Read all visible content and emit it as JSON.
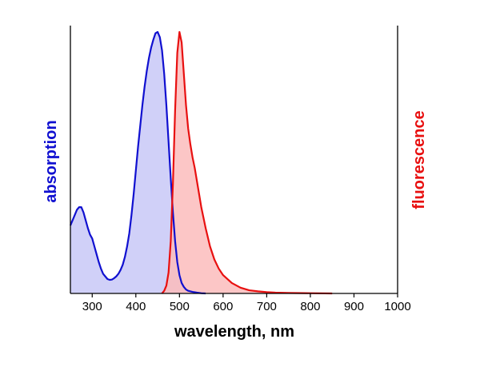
{
  "chart_data": {
    "type": "area",
    "xlabel": "wavelength, nm",
    "ylabel_left": "absorption",
    "ylabel_right": "fluorescence",
    "xlim": [
      250,
      1000
    ],
    "ylim": [
      0,
      1.0
    ],
    "grid": false,
    "x_ticks": [
      300,
      400,
      500,
      600,
      700,
      800,
      900,
      1000
    ],
    "tick_labels": [
      "300",
      "400",
      "500",
      "600",
      "700",
      "800",
      "900",
      "1000"
    ],
    "series": [
      {
        "name": "absorption",
        "color": "#1010d0",
        "fill": "#c8c8f7",
        "points": [
          [
            250,
            0.26
          ],
          [
            255,
            0.28
          ],
          [
            260,
            0.3
          ],
          [
            265,
            0.32
          ],
          [
            270,
            0.33
          ],
          [
            275,
            0.33
          ],
          [
            280,
            0.31
          ],
          [
            285,
            0.28
          ],
          [
            290,
            0.25
          ],
          [
            295,
            0.225
          ],
          [
            300,
            0.21
          ],
          [
            305,
            0.18
          ],
          [
            310,
            0.15
          ],
          [
            315,
            0.12
          ],
          [
            320,
            0.095
          ],
          [
            325,
            0.075
          ],
          [
            330,
            0.065
          ],
          [
            335,
            0.055
          ],
          [
            340,
            0.052
          ],
          [
            345,
            0.053
          ],
          [
            350,
            0.058
          ],
          [
            355,
            0.065
          ],
          [
            360,
            0.075
          ],
          [
            365,
            0.09
          ],
          [
            370,
            0.11
          ],
          [
            375,
            0.14
          ],
          [
            380,
            0.18
          ],
          [
            385,
            0.23
          ],
          [
            390,
            0.3
          ],
          [
            395,
            0.38
          ],
          [
            400,
            0.47
          ],
          [
            405,
            0.56
          ],
          [
            410,
            0.64
          ],
          [
            415,
            0.72
          ],
          [
            420,
            0.79
          ],
          [
            425,
            0.85
          ],
          [
            430,
            0.9
          ],
          [
            435,
            0.94
          ],
          [
            440,
            0.97
          ],
          [
            445,
            0.995
          ],
          [
            450,
            1.0
          ],
          [
            455,
            0.98
          ],
          [
            460,
            0.93
          ],
          [
            465,
            0.84
          ],
          [
            470,
            0.72
          ],
          [
            475,
            0.58
          ],
          [
            480,
            0.44
          ],
          [
            485,
            0.31
          ],
          [
            490,
            0.2
          ],
          [
            495,
            0.12
          ],
          [
            500,
            0.07
          ],
          [
            505,
            0.04
          ],
          [
            510,
            0.025
          ],
          [
            515,
            0.015
          ],
          [
            520,
            0.01
          ],
          [
            530,
            0.006
          ],
          [
            540,
            0.003
          ],
          [
            550,
            0.001
          ],
          [
            560,
            0.0
          ]
        ]
      },
      {
        "name": "fluorescence",
        "color": "#e81010",
        "fill": "#fbbcbc",
        "points": [
          [
            460,
            0.0
          ],
          [
            465,
            0.01
          ],
          [
            470,
            0.03
          ],
          [
            475,
            0.08
          ],
          [
            480,
            0.2
          ],
          [
            485,
            0.42
          ],
          [
            490,
            0.7
          ],
          [
            495,
            0.92
          ],
          [
            500,
            1.0
          ],
          [
            505,
            0.96
          ],
          [
            510,
            0.84
          ],
          [
            515,
            0.72
          ],
          [
            520,
            0.63
          ],
          [
            525,
            0.57
          ],
          [
            530,
            0.52
          ],
          [
            535,
            0.48
          ],
          [
            540,
            0.43
          ],
          [
            545,
            0.38
          ],
          [
            550,
            0.33
          ],
          [
            560,
            0.25
          ],
          [
            570,
            0.18
          ],
          [
            580,
            0.13
          ],
          [
            590,
            0.095
          ],
          [
            600,
            0.07
          ],
          [
            620,
            0.04
          ],
          [
            640,
            0.022
          ],
          [
            660,
            0.012
          ],
          [
            680,
            0.008
          ],
          [
            700,
            0.005
          ],
          [
            720,
            0.003
          ],
          [
            750,
            0.002
          ],
          [
            800,
            0.001
          ],
          [
            850,
            0.0
          ]
        ]
      }
    ]
  }
}
